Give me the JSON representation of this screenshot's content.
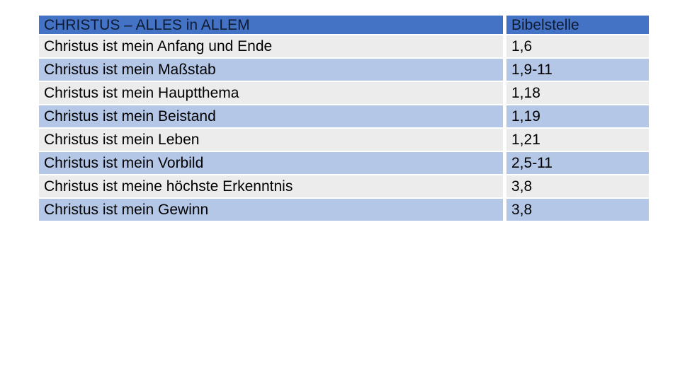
{
  "table": {
    "header": {
      "left": "CHRISTUS – ALLES in ALLEM",
      "right": "Bibelstelle"
    },
    "rows": [
      {
        "text": "Christus ist mein Anfang und Ende",
        "ref": "1,6"
      },
      {
        "text": "Christus ist mein Maßstab",
        "ref": "1,9-11"
      },
      {
        "text": "Christus ist mein Hauptthema",
        "ref": "1,18"
      },
      {
        "text": "Christus ist mein Beistand",
        "ref": "1,19"
      },
      {
        "text": "Christus ist mein Leben",
        "ref": "1,21"
      },
      {
        "text": "Christus ist mein Vorbild",
        "ref": "2,5-11"
      },
      {
        "text": "Christus ist meine höchste Erkenntnis",
        "ref": "3,8"
      },
      {
        "text": "Christus ist mein Gewinn",
        "ref": "3,8"
      }
    ],
    "colors": {
      "header_bg": "#4472C4",
      "header_text": "#0d1b33",
      "row_blue": "#B4C7E7",
      "row_gray": "#ECECEC",
      "text": "#000000"
    }
  }
}
